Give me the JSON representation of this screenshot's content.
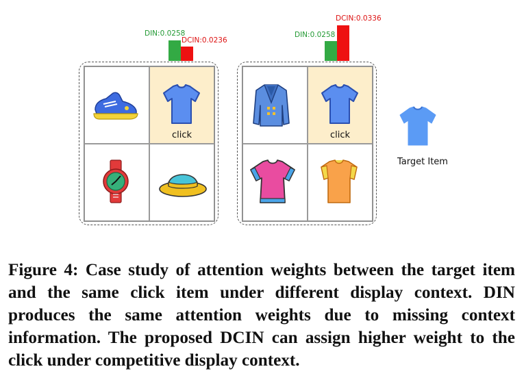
{
  "left_panel": {
    "bars": [
      {
        "label": "DIN:0.0258",
        "value": 0.0258,
        "color": "#33aa44"
      },
      {
        "label": "DCIN:0.0236",
        "value": 0.0236,
        "color": "#ee1111"
      }
    ],
    "click_label": "click"
  },
  "right_panel": {
    "bars": [
      {
        "label": "DIN:0.0258",
        "value": 0.0258,
        "color": "#33aa44"
      },
      {
        "label": "DCIN:0.0336",
        "value": 0.0336,
        "color": "#ee1111"
      }
    ],
    "click_label": "click"
  },
  "target": {
    "label": "Target Item"
  },
  "caption": "Figure 4: Case study of attention weights between the target item and the same click item under different display context. DIN produces the same attention weights due to missing context information. The proposed DCIN can assign higher weight to the click under competitive display context.",
  "icons": {
    "left": [
      "sneaker-icon",
      "tshirt-blue-icon",
      "watch-icon",
      "hat-icon"
    ],
    "right": [
      "blazer-icon",
      "tshirt-blue-icon",
      "tshirt-pink-icon",
      "tshirt-orange-icon"
    ],
    "target": "tshirt-blue-icon"
  }
}
